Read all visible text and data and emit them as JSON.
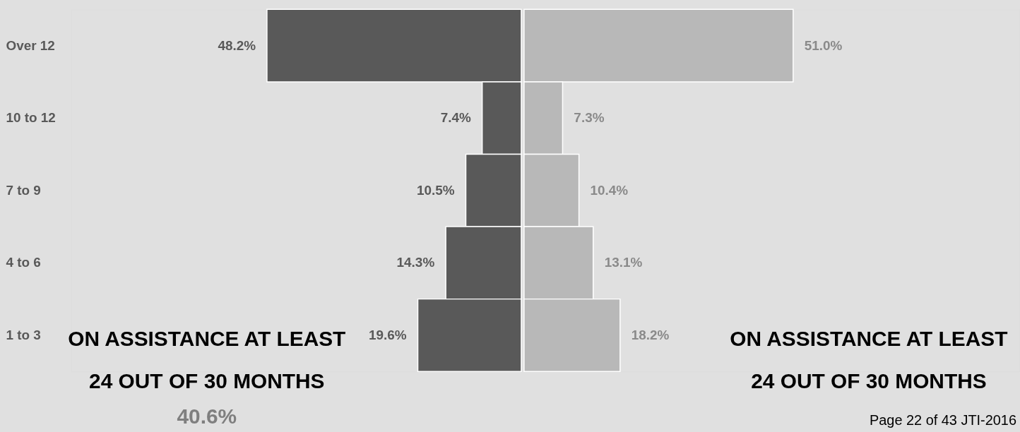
{
  "chart_data": [
    {
      "type": "bar",
      "orientation": "horizontal",
      "categories": [
        "Over 12",
        "10 to 12",
        "7 to 9",
        "4 to 6",
        "1 to 3"
      ],
      "series": [
        {
          "color": "#595959",
          "values": [
            48.2,
            7.4,
            10.5,
            14.3,
            19.6
          ],
          "value_labels": [
            "48.2%",
            "7.4%",
            "10.5%",
            "14.3%",
            "19.6%"
          ]
        }
      ],
      "annotations": [
        "ON ASSISTANCE AT LEAST",
        "24 OUT OF 30 MONTHS",
        "40.6%"
      ]
    },
    {
      "type": "bar",
      "orientation": "horizontal",
      "categories": [
        null,
        null,
        null,
        null,
        null
      ],
      "series": [
        {
          "color": "#b8b8b8",
          "values": [
            51.0,
            7.3,
            10.4,
            13.1,
            18.2
          ],
          "value_labels": [
            "51.0%",
            "7.3%",
            "10.4%",
            "13.1%",
            "18.2%"
          ]
        }
      ],
      "annotations": [
        "ON ASSISTANCE AT LEAST",
        "24 OUT OF 30 MONTHS",
        "Page 22 of 43 JTI-2016"
      ]
    }
  ]
}
